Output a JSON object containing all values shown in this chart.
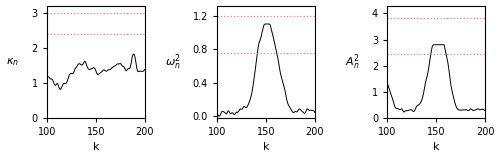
{
  "xlim": [
    100,
    200
  ],
  "xlabel": "k",
  "plots": [
    {
      "ylabel": "$\\kappa_n$",
      "ylim": [
        0,
        3.2
      ],
      "yticks": [
        0,
        1,
        2,
        3
      ],
      "hlines_95": 2.4,
      "hlines_99": 3.0
    },
    {
      "ylabel": "$\\omega_n^2$",
      "ylim": [
        -0.02,
        1.32
      ],
      "yticks": [
        0.0,
        0.4,
        0.8,
        1.2
      ],
      "hlines_95": 0.75,
      "hlines_99": 1.2
    },
    {
      "ylabel": "$A_n^2$",
      "ylim": [
        0,
        4.3
      ],
      "yticks": [
        0,
        1,
        2,
        3,
        4
      ],
      "hlines_95": 2.45,
      "hlines_99": 3.84
    }
  ],
  "line_color": "black",
  "dotted_color": "#FF8080",
  "fig_width": 5.0,
  "fig_height": 1.58,
  "dpi": 100
}
